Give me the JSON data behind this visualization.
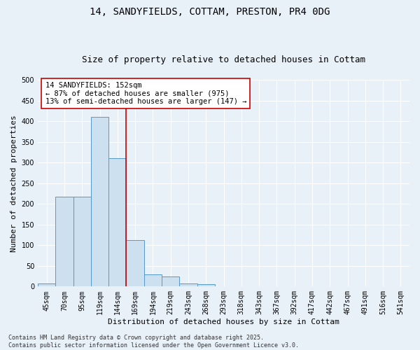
{
  "title_line1": "14, SANDYFIELDS, COTTAM, PRESTON, PR4 0DG",
  "title_line2": "Size of property relative to detached houses in Cottam",
  "xlabel": "Distribution of detached houses by size in Cottam",
  "ylabel": "Number of detached properties",
  "categories": [
    "45sqm",
    "70sqm",
    "95sqm",
    "119sqm",
    "144sqm",
    "169sqm",
    "194sqm",
    "219sqm",
    "243sqm",
    "268sqm",
    "293sqm",
    "318sqm",
    "343sqm",
    "367sqm",
    "392sqm",
    "417sqm",
    "442sqm",
    "467sqm",
    "491sqm",
    "516sqm",
    "541sqm"
  ],
  "values": [
    8,
    218,
    218,
    410,
    310,
    113,
    30,
    25,
    7,
    6,
    0,
    0,
    0,
    0,
    0,
    0,
    0,
    0,
    0,
    0,
    0
  ],
  "bar_color": "#cce0f0",
  "bar_edge_color": "#5599cc",
  "vline_color": "#cc0000",
  "annotation_text": "14 SANDYFIELDS: 152sqm\n← 87% of detached houses are smaller (975)\n13% of semi-detached houses are larger (147) →",
  "annotation_box_color": "#ffffff",
  "annotation_box_edge": "#cc0000",
  "ylim": [
    0,
    500
  ],
  "yticks": [
    0,
    50,
    100,
    150,
    200,
    250,
    300,
    350,
    400,
    450,
    500
  ],
  "background_color": "#e8f0f8",
  "grid_color": "#ffffff",
  "footer_text": "Contains HM Land Registry data © Crown copyright and database right 2025.\nContains public sector information licensed under the Open Government Licence v3.0.",
  "title_fontsize": 10,
  "subtitle_fontsize": 9,
  "axis_label_fontsize": 8,
  "tick_fontsize": 7,
  "annotation_fontsize": 7.5,
  "footer_fontsize": 6
}
